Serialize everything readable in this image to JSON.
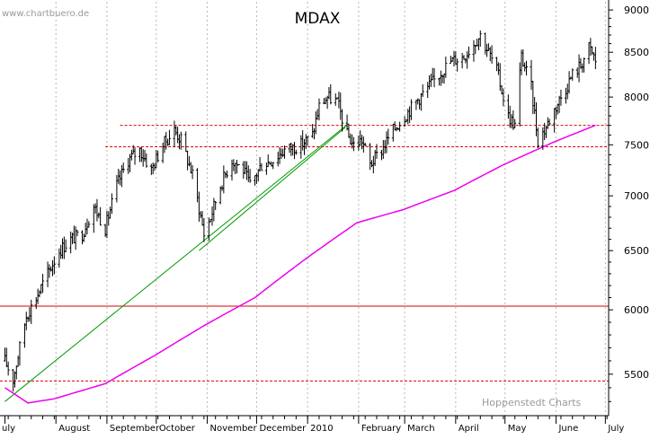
{
  "header": {
    "watermark": "www.chartbuero.de",
    "title": "MDAX",
    "credit": "Hoppenstedt Charts"
  },
  "chart_data": {
    "type": "line",
    "title": "MDAX",
    "scale": "log",
    "ylim": [
      5200,
      9100
    ],
    "y_ticks": [
      5500,
      6000,
      6500,
      7000,
      7500,
      8000,
      8500,
      9000
    ],
    "x_labels": [
      "uly",
      "August",
      "September",
      "October",
      "November",
      "December",
      "2010",
      "February",
      "March",
      "April",
      "May",
      "June",
      "July"
    ],
    "grid": "vertical-dotted",
    "series": [
      {
        "style": "ohlc-bars",
        "color": "#000000",
        "x": [
          "2009-07-01",
          "2009-07-06",
          "2009-07-10",
          "2009-07-14",
          "2009-07-20",
          "2009-07-27",
          "2009-08-03",
          "2009-08-10",
          "2009-08-17",
          "2009-08-24",
          "2009-08-31",
          "2009-09-07",
          "2009-09-14",
          "2009-09-21",
          "2009-09-28",
          "2009-10-05",
          "2009-10-12",
          "2009-10-16",
          "2009-10-23",
          "2009-10-30",
          "2009-11-03",
          "2009-11-09",
          "2009-11-16",
          "2009-11-23",
          "2009-11-27",
          "2009-12-04",
          "2009-12-11",
          "2009-12-18",
          "2009-12-28",
          "2010-01-04",
          "2010-01-08",
          "2010-01-13",
          "2010-01-19",
          "2010-01-25",
          "2010-01-29",
          "2010-02-03",
          "2010-02-08",
          "2010-02-15",
          "2010-02-22",
          "2010-03-01",
          "2010-03-08",
          "2010-03-15",
          "2010-03-22",
          "2010-03-29",
          "2010-04-06",
          "2010-04-12",
          "2010-04-16",
          "2010-04-21",
          "2010-04-26",
          "2010-04-30",
          "2010-05-03",
          "2010-05-07",
          "2010-05-11",
          "2010-05-17",
          "2010-05-21",
          "2010-05-25",
          "2010-06-01",
          "2010-06-07",
          "2010-06-11",
          "2010-06-16",
          "2010-06-21",
          "2010-06-24",
          "2010-06-28"
        ],
        "values": [
          5600,
          5460,
          5700,
          5950,
          6100,
          6300,
          6500,
          6600,
          6650,
          6900,
          6700,
          7100,
          7350,
          7450,
          7250,
          7500,
          7650,
          7550,
          7200,
          6650,
          6800,
          7100,
          7350,
          7250,
          7100,
          7300,
          7350,
          7450,
          7500,
          7600,
          7900,
          8000,
          7950,
          7600,
          7500,
          7550,
          7300,
          7450,
          7650,
          7800,
          7950,
          8100,
          8250,
          8400,
          8450,
          8600,
          8700,
          8500,
          8300,
          8000,
          7800,
          7700,
          8450,
          8100,
          7550,
          7650,
          7900,
          8100,
          8250,
          8350,
          8550,
          8450,
          8250
        ]
      },
      {
        "name": "",
        "style": "moving-average",
        "color": "#ee00ee",
        "x": [
          "2009-07-01",
          "2009-07-15",
          "2009-07-31",
          "2009-08-31",
          "2009-09-30",
          "2009-10-31",
          "2009-11-30",
          "2009-12-31",
          "2010-01-31",
          "2010-02-28",
          "2010-03-31",
          "2010-04-30",
          "2010-05-31",
          "2010-06-25"
        ],
        "values": [
          5400,
          5290,
          5320,
          5430,
          5640,
          5880,
          6100,
          6430,
          6750,
          6870,
          7050,
          7300,
          7530,
          7700
        ]
      },
      {
        "style": "trendline",
        "color": "#009900",
        "x": [
          "2009-07-01",
          "2010-01-26"
        ],
        "values": [
          5300,
          7720
        ]
      },
      {
        "style": "trendline",
        "color": "#009900",
        "x": [
          "2009-10-27",
          "2010-01-24"
        ],
        "values": [
          6500,
          7680
        ]
      }
    ],
    "horizontal_lines": [
      {
        "value": 7700,
        "style": "dashed",
        "color": "#dd0000",
        "x_from": "2009-09-09"
      },
      {
        "value": 7480,
        "style": "dashed",
        "color": "#dd0000",
        "x_from": "2009-08-31"
      },
      {
        "value": 6030,
        "style": "solid",
        "color": "#dd0000"
      },
      {
        "value": 5450,
        "style": "dashed",
        "color": "#dd0000"
      }
    ]
  }
}
